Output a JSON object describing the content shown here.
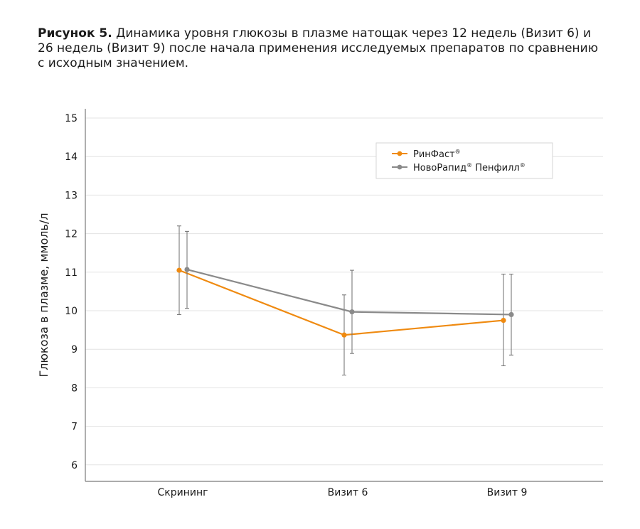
{
  "caption": {
    "label": "Рисунок 5.",
    "text": " Динамика уровня глюкозы в плазме натощак через 12 недель (Визит 6) и 26 недель (Визит 9) после начала применения исследуемых препаратов по сравнению с исходным значением."
  },
  "chart_data": {
    "type": "line",
    "categories": [
      "Скрининг",
      "Визит 6",
      "Визит 9"
    ],
    "ylabel": "Глюкоза в плазме, ммоль/л",
    "xlabel": "",
    "ylim": [
      5.5,
      15.3
    ],
    "yticks": [
      6,
      7,
      8,
      9,
      10,
      11,
      12,
      13,
      14,
      15
    ],
    "grid": true,
    "legend_position": "top-right",
    "series": [
      {
        "name": "РинФаст",
        "name_sup": "®",
        "color": "#ef8a10",
        "values": [
          11.05,
          9.37,
          9.75
        ],
        "err_low": [
          9.9,
          8.33,
          8.57
        ],
        "err_high": [
          12.2,
          10.41,
          10.95
        ]
      },
      {
        "name": "НовоРапид",
        "name_sup": "®",
        "name_suffix": " Пенфилл",
        "name_suffix_sup": "®",
        "color": "#8a8a8a",
        "values": [
          11.07,
          9.97,
          9.9
        ],
        "err_low": [
          10.06,
          8.89,
          8.85
        ],
        "err_high": [
          12.06,
          11.05,
          10.95
        ]
      }
    ]
  }
}
